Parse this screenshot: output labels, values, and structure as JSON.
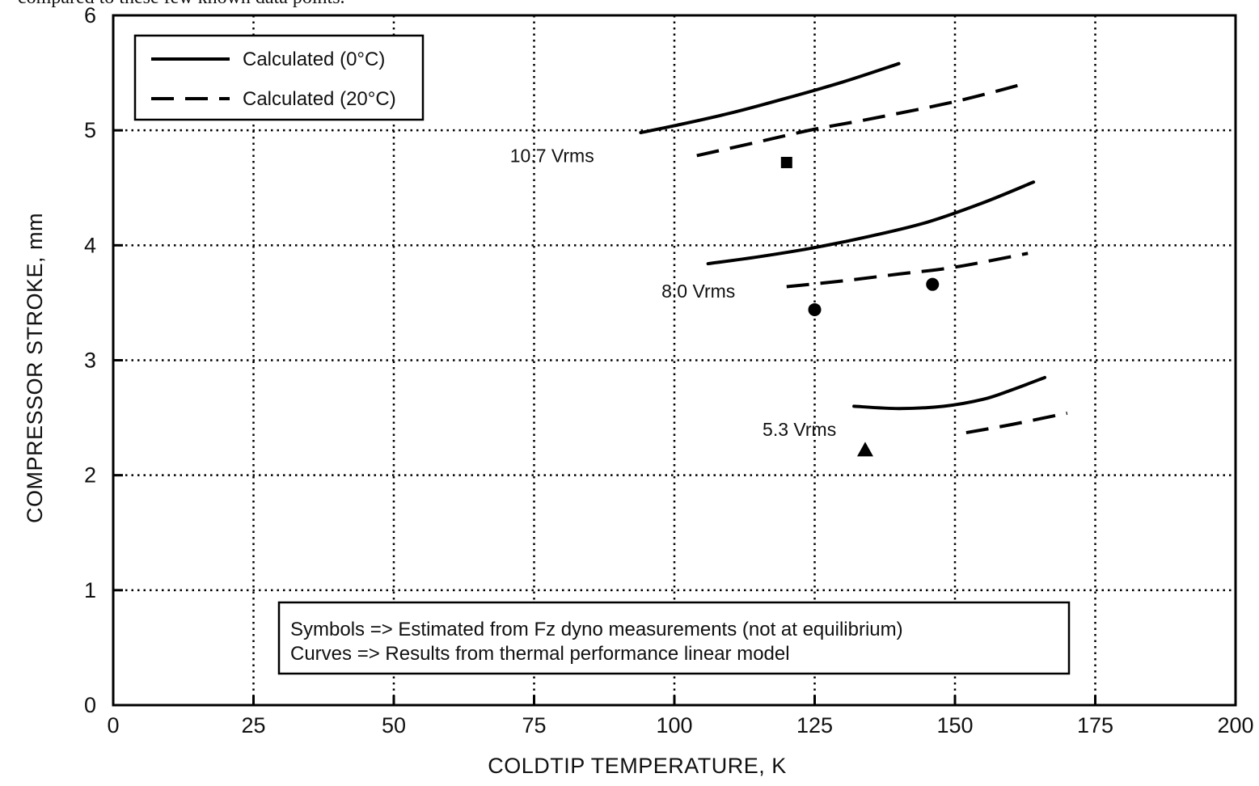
{
  "header_fragment": "compared to these few known data points.",
  "chart_data": {
    "type": "line",
    "xlabel": "COLDTIP  TEMPERATURE,  K",
    "ylabel": "COMPRESSOR  STROKE,  mm",
    "xlim": [
      0,
      200
    ],
    "ylim": [
      0,
      6
    ],
    "x_ticks": [
      0,
      25,
      50,
      75,
      100,
      125,
      150,
      175,
      200
    ],
    "y_ticks": [
      0,
      1,
      2,
      3,
      4,
      5,
      6
    ],
    "grid": "dotted",
    "legend": {
      "placement": "top-left",
      "entries": [
        {
          "label": "Calculated (0°C)",
          "style": "solid"
        },
        {
          "label": "Calculated (20°C)",
          "style": "dashed"
        }
      ]
    },
    "series": [
      {
        "name": "Calculated (0°C)",
        "group": "10.7 Vrms",
        "style": "solid",
        "x": [
          94,
          100,
          110,
          120,
          130,
          140
        ],
        "y": [
          4.98,
          5.04,
          5.15,
          5.28,
          5.42,
          5.58
        ]
      },
      {
        "name": "Calculated (20°C)",
        "group": "10.7 Vrms",
        "style": "dashed",
        "x": [
          104,
          115,
          125,
          135,
          150,
          162
        ],
        "y": [
          4.78,
          4.9,
          5.01,
          5.1,
          5.25,
          5.4
        ]
      },
      {
        "name": "Calculated (0°C)",
        "group": "8.0 Vrms",
        "style": "solid",
        "x": [
          106,
          115,
          125,
          135,
          145,
          155,
          164
        ],
        "y": [
          3.84,
          3.9,
          3.98,
          4.08,
          4.2,
          4.37,
          4.55
        ]
      },
      {
        "name": "Calculated (20°C)",
        "group": "8.0 Vrms",
        "style": "dashed",
        "x": [
          120,
          130,
          140,
          150,
          163
        ],
        "y": [
          3.64,
          3.69,
          3.75,
          3.81,
          3.93
        ]
      },
      {
        "name": "Calculated (0°C)",
        "group": "5.3 Vrms",
        "style": "solid",
        "x": [
          132,
          140,
          148,
          155,
          160,
          166
        ],
        "y": [
          2.6,
          2.58,
          2.6,
          2.66,
          2.74,
          2.85
        ]
      },
      {
        "name": "Calculated (20°C)",
        "group": "5.3 Vrms",
        "style": "dashed",
        "x": [
          152,
          160,
          170
        ],
        "y": [
          2.37,
          2.44,
          2.54
        ]
      }
    ],
    "points": [
      {
        "group": "10.7 Vrms",
        "marker": "square",
        "x": 120,
        "y": 4.72
      },
      {
        "group": "8.0 Vrms",
        "marker": "circle",
        "x": 125,
        "y": 3.44
      },
      {
        "group": "8.0 Vrms",
        "marker": "circle",
        "x": 146,
        "y": 3.66
      },
      {
        "group": "5.3 Vrms",
        "marker": "triangle",
        "x": 134,
        "y": 2.22
      }
    ],
    "annotations": [
      {
        "text": "10.7 Vrms",
        "x": 71,
        "y": 4.78
      },
      {
        "text": "8.0 Vrms",
        "x": 98,
        "y": 3.6
      },
      {
        "text": "5.3 Vrms",
        "x": 116,
        "y": 2.4
      }
    ],
    "notes": [
      "Symbols => Estimated from Fz dyno measurements (not at equilibrium)",
      "Curves => Results from thermal performance linear model"
    ]
  }
}
